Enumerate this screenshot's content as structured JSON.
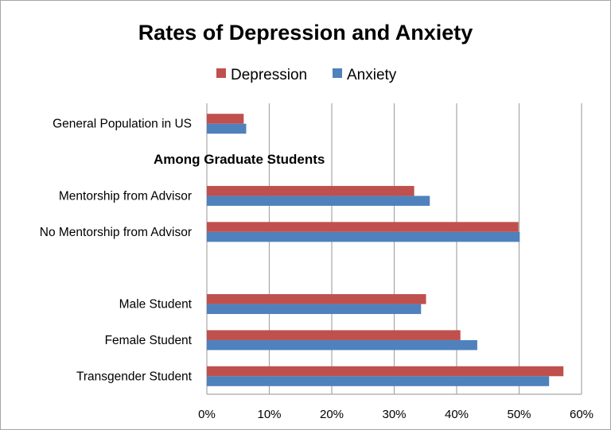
{
  "chart_data": {
    "type": "bar",
    "orientation": "horizontal",
    "title": "Rates of Depression and Anxiety",
    "categories": [
      "General Population in US",
      "Among Graduate Students",
      "Mentorship from Advisor",
      "No Mentorship from Advisor",
      "",
      "Male Student",
      "Female Student",
      "Transgender Student"
    ],
    "heading_category": "Among Graduate Students",
    "series": [
      {
        "name": "Depression",
        "color": "#c0504d",
        "values": [
          5.9,
          null,
          33.2,
          49.9,
          null,
          35.1,
          40.6,
          57.1
        ]
      },
      {
        "name": "Anxiety",
        "color": "#4f81bd",
        "values": [
          6.3,
          null,
          35.7,
          50.1,
          null,
          34.3,
          43.3,
          54.8
        ]
      }
    ],
    "xlim": [
      0,
      60
    ],
    "x_ticks": [
      "0%",
      "10%",
      "20%",
      "30%",
      "40%",
      "50%",
      "60%"
    ],
    "x_tick_values": [
      0,
      10,
      20,
      30,
      40,
      50,
      60
    ],
    "grid": "vertical",
    "legend_position": "top",
    "xlabel": "",
    "ylabel": ""
  }
}
